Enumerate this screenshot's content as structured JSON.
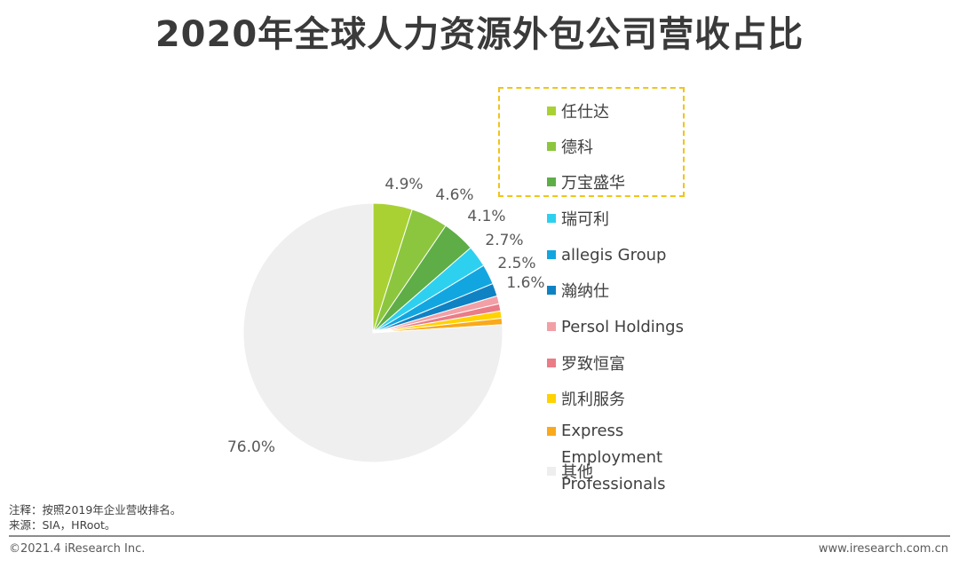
{
  "header": {
    "title": "2020年全球人力资源外包公司营收占比"
  },
  "chart_data": {
    "type": "pie",
    "title": "2020年全球人力资源外包公司营收占比",
    "labels": [
      "任仕达",
      "德科",
      "万宝盛华",
      "瑞可利",
      "allegis Group",
      "瀚纳仕",
      "Persol Holdings",
      "罗致恒富",
      "凯利服务",
      "Express Employment Professionals",
      "其他"
    ],
    "values": [
      4.9,
      4.6,
      4.1,
      2.7,
      2.5,
      1.6,
      1.0,
      0.9,
      0.9,
      0.8,
      76.0
    ],
    "value_labels": [
      "4.9%",
      "4.6%",
      "4.1%",
      "2.7%",
      "2.5%",
      "1.6%",
      "",
      "",
      "",
      "",
      "76.0%"
    ],
    "colors": [
      "#a9d134",
      "#8cc63f",
      "#5fad46",
      "#2ed0f0",
      "#12a6e0",
      "#0f82c4",
      "#f2a0a6",
      "#ea7c87",
      "#ffd200",
      "#f9a91b",
      "#efefef"
    ],
    "start_angle_deg": 0,
    "direction": "clockwise",
    "legend_position": "right",
    "highlighted_legend_items": [
      "任仕达",
      "德科",
      "万宝盛华"
    ]
  },
  "notes": {
    "note": "注释：按照2019年企业营收排名。",
    "source": "来源：SIA，HRoot。"
  },
  "footer": {
    "copyright": "©2021.4 iResearch Inc.",
    "website": "www.iresearch.com.cn"
  },
  "colors": {
    "highlight_border": "#f0c419",
    "footer_rule": "#8c8c8c"
  }
}
